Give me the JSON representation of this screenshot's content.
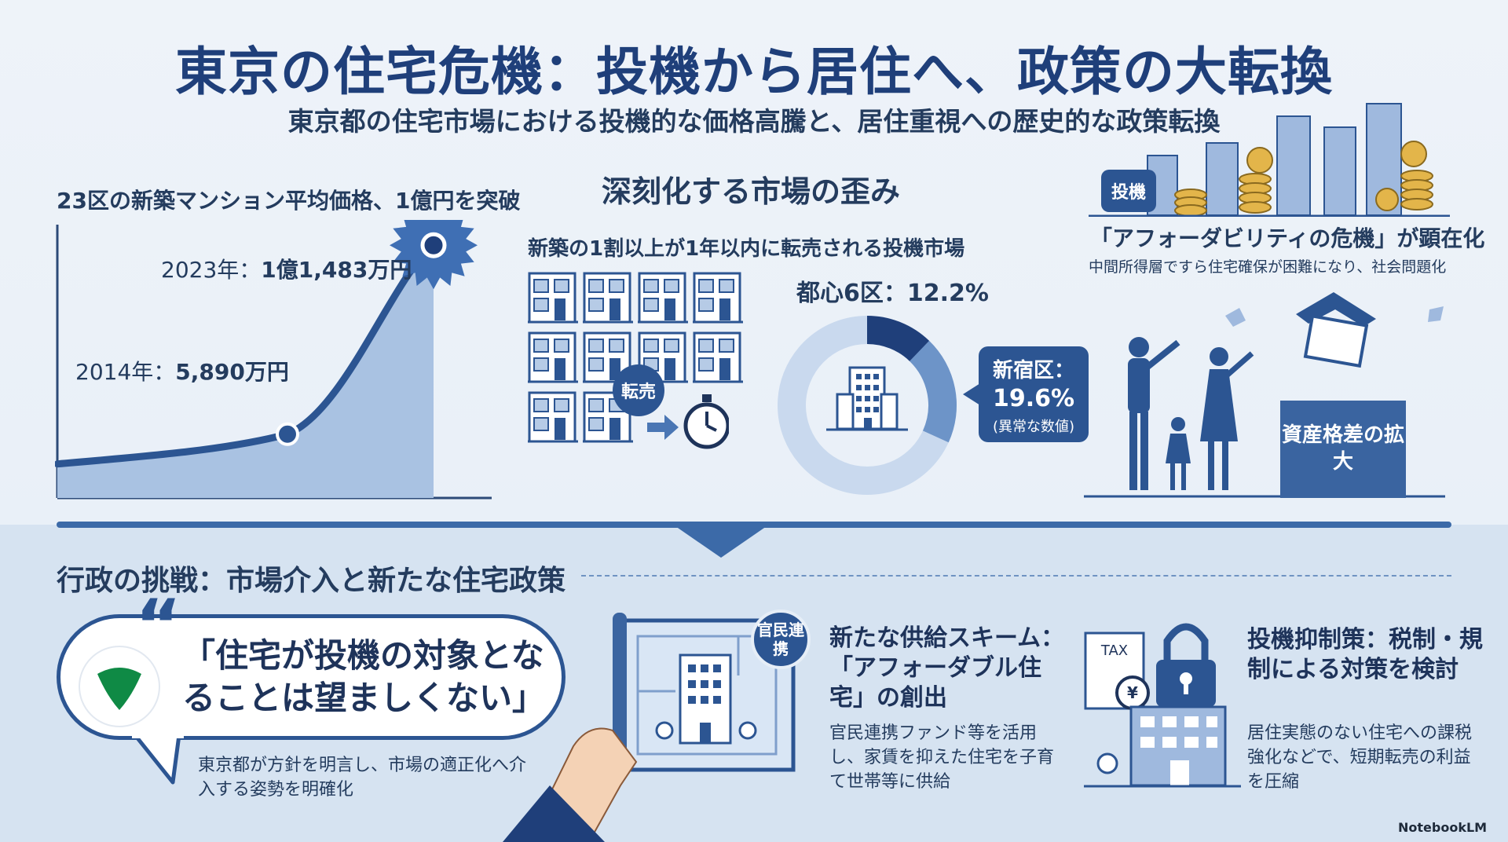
{
  "header": {
    "title": "東京の住宅危機：投機から居住へ、政策の大転換",
    "subtitle": "東京都の住宅市場における投機的な価格高騰と、居住重視への歴史的な政策転換"
  },
  "price_chart": {
    "title": "23区の新築マンション平均価格、1億円を突破",
    "point_2014": {
      "year_label": "2014年：",
      "value_label": "5,890万円"
    },
    "point_2023": {
      "year_label": "2023年：",
      "value_label": "1億1,483万円"
    }
  },
  "chart_data": {
    "type": "area",
    "title": "23区の新築マンション平均価格、1億円を突破",
    "xlabel": "",
    "ylabel": "",
    "points": [
      {
        "label": "2014年",
        "value": 5890
      },
      {
        "label": "2023年",
        "value": 11483
      }
    ],
    "unit": "万円"
  },
  "market": {
    "title": "深刻化する市場の歪み",
    "subtitle": "新築の1割以上が1年以内に転売される投機市場",
    "resale_label": "転売",
    "donut": {
      "label": "都心6区：12.2%",
      "value": 12.2,
      "shinjuku_name": "新宿区：",
      "shinjuku_value": "19.6%",
      "shinjuku_value_num": 19.6,
      "shinjuku_note": "(異常な数値)"
    }
  },
  "affordability": {
    "badge": "投機",
    "title": "「アフォーダビリティの危機」が顕在化",
    "subtitle": "中間所得層ですら住宅確保が困難になり、社会問題化",
    "asset_gap": "資産格差の拡大"
  },
  "admin": {
    "title": "行政の挑戦：市場介入と新たな住宅政策",
    "quote": "「住宅が投機の対象となることは望ましくない」",
    "quote_caption": "東京都が方針を明言し、市場の適正化へ介入する姿勢を明確化",
    "gov_badge": "官民連携",
    "supply_title": "新たな供給スキーム：「アフォーダブル住宅」の創出",
    "supply_desc": "官民連携ファンド等を活用し、家賃を抑えた住宅を子育て世帯等に供給",
    "tax_label": "TAX",
    "reg_title": "投機抑制策：税制・規制による対策を検討",
    "reg_desc": "居住実態のない住宅への課税強化などで、短期転売の利益を圧縮"
  },
  "footer": {
    "credit": "NotebookLM"
  },
  "colors": {
    "navy": "#1f3f7a",
    "accent": "#2c5592",
    "light": "#b6cbe6",
    "bg": "#eef3f9"
  }
}
